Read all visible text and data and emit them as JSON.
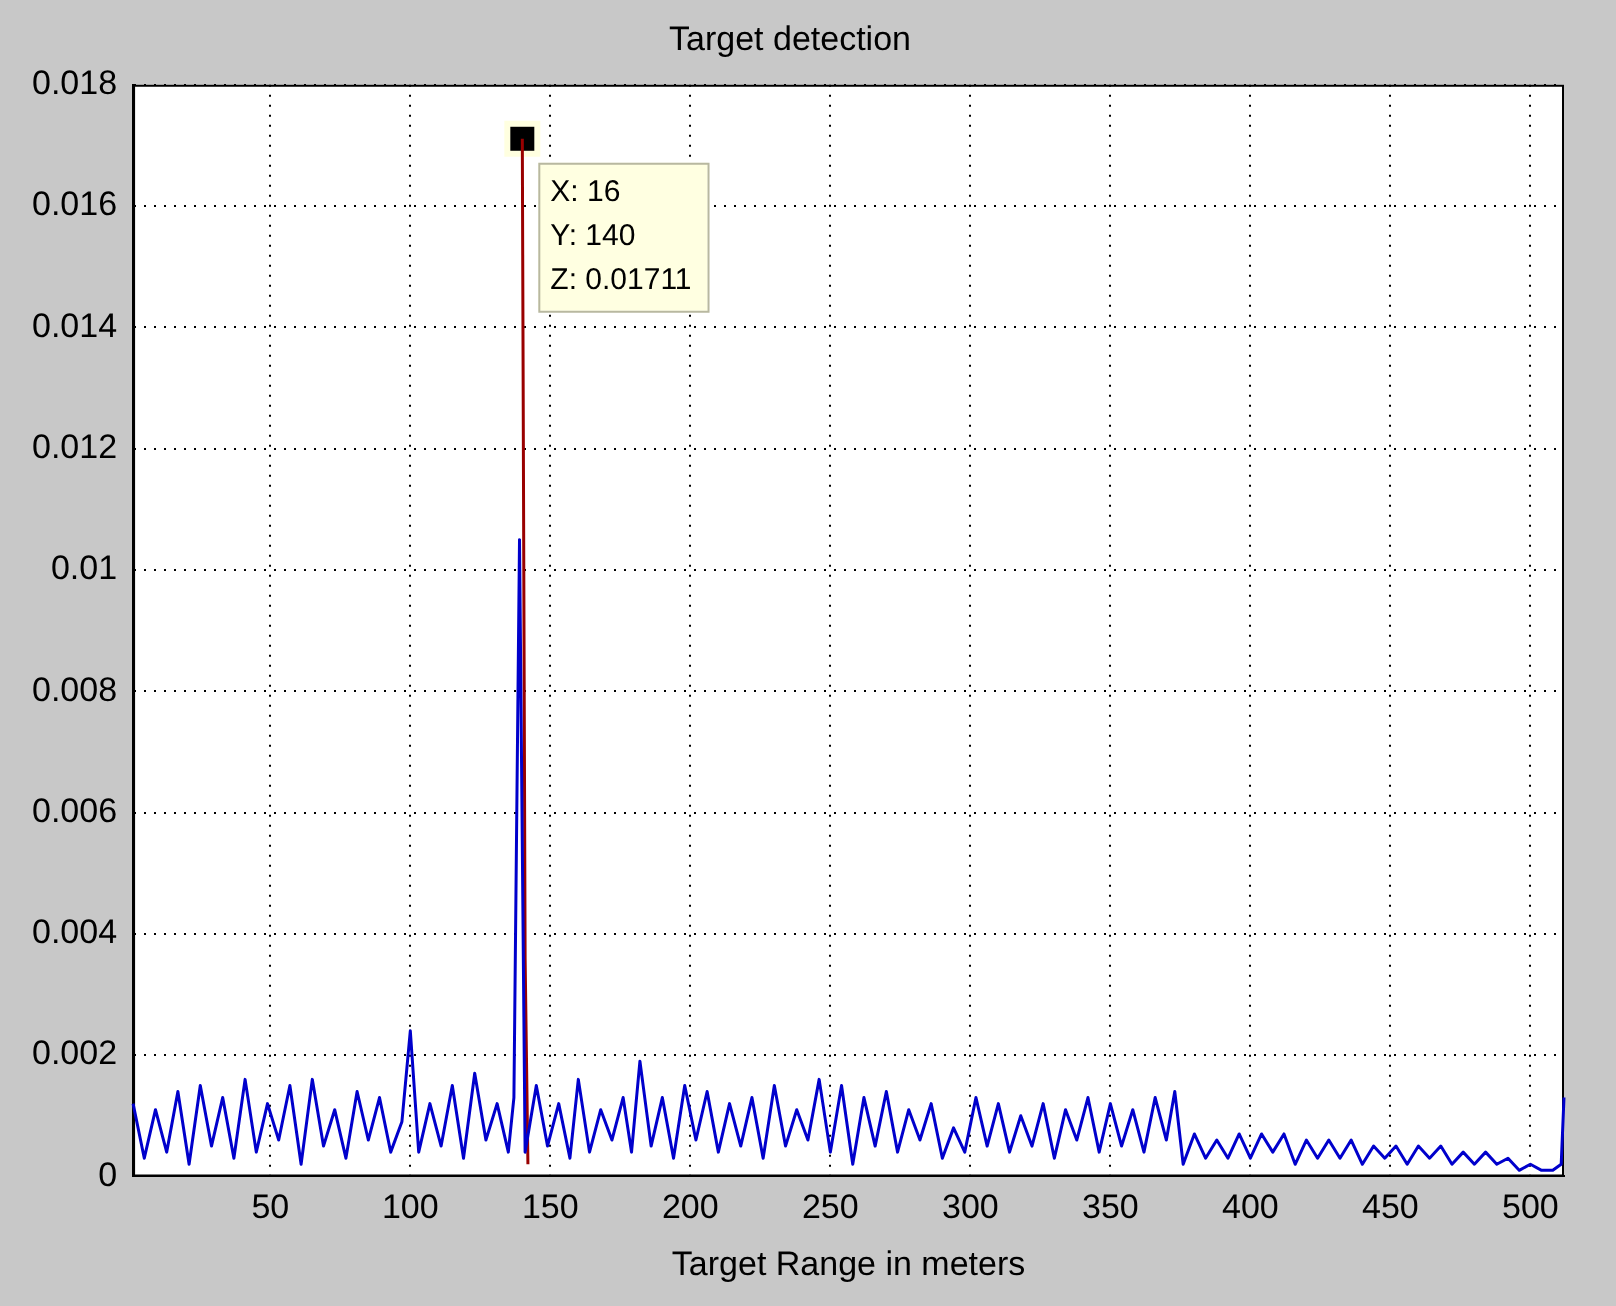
{
  "chart_data": {
    "type": "line",
    "title": "Target detection",
    "xlabel": "Target Range in meters",
    "xlim": [
      1,
      512
    ],
    "xticks": [
      50,
      100,
      150,
      200,
      250,
      300,
      350,
      400,
      450,
      500
    ],
    "ylim": [
      0,
      0.018
    ],
    "yticks": [
      0,
      0.002,
      0.004,
      0.006,
      0.008,
      0.01,
      0.012,
      0.014,
      0.016,
      0.018
    ],
    "grid": true,
    "marker": "none",
    "line_style": "solid",
    "annotations": [
      {
        "text": "X: 16\nY: 140\nZ: 0.01711",
        "x": 140,
        "y": 0.01711
      }
    ],
    "series": [
      {
        "color": "#0000cc",
        "x": [
          1,
          5,
          9,
          13,
          17,
          21,
          25,
          29,
          33,
          37,
          41,
          45,
          49,
          53,
          57,
          61,
          65,
          69,
          73,
          77,
          81,
          85,
          89,
          93,
          97,
          100,
          103,
          107,
          111,
          115,
          119,
          123,
          127,
          131,
          135,
          137,
          139,
          141,
          145,
          149,
          153,
          157,
          160,
          164,
          168,
          172,
          176,
          179,
          182,
          186,
          190,
          194,
          198,
          202,
          206,
          210,
          214,
          218,
          222,
          226,
          230,
          234,
          238,
          242,
          246,
          250,
          254,
          258,
          262,
          266,
          270,
          274,
          278,
          282,
          286,
          290,
          294,
          298,
          302,
          306,
          310,
          314,
          318,
          322,
          326,
          330,
          334,
          338,
          342,
          346,
          350,
          354,
          358,
          362,
          366,
          370,
          373,
          376,
          380,
          384,
          388,
          392,
          396,
          400,
          404,
          408,
          412,
          416,
          420,
          424,
          428,
          432,
          436,
          440,
          444,
          448,
          452,
          456,
          460,
          464,
          468,
          472,
          476,
          480,
          484,
          488,
          492,
          496,
          500,
          504,
          508,
          511,
          512
        ],
        "values": [
          0.0012,
          0.0003,
          0.0011,
          0.0004,
          0.0014,
          0.0002,
          0.0015,
          0.0005,
          0.0013,
          0.0003,
          0.0016,
          0.0004,
          0.0012,
          0.0006,
          0.0015,
          0.0002,
          0.0016,
          0.0005,
          0.0011,
          0.0003,
          0.0014,
          0.0006,
          0.0013,
          0.0004,
          0.0009,
          0.0024,
          0.0004,
          0.0012,
          0.0005,
          0.0015,
          0.0003,
          0.0017,
          0.0006,
          0.0012,
          0.0004,
          0.0013,
          0.0105,
          0.0004,
          0.0015,
          0.0005,
          0.0012,
          0.0003,
          0.0016,
          0.0004,
          0.0011,
          0.0006,
          0.0013,
          0.0004,
          0.0019,
          0.0005,
          0.0013,
          0.0003,
          0.0015,
          0.0006,
          0.0014,
          0.0004,
          0.0012,
          0.0005,
          0.0013,
          0.0003,
          0.0015,
          0.0005,
          0.0011,
          0.0006,
          0.0016,
          0.0004,
          0.0015,
          0.0002,
          0.0013,
          0.0005,
          0.0014,
          0.0004,
          0.0011,
          0.0006,
          0.0012,
          0.0003,
          0.0008,
          0.0004,
          0.0013,
          0.0005,
          0.0012,
          0.0004,
          0.001,
          0.0005,
          0.0012,
          0.0003,
          0.0011,
          0.0006,
          0.0013,
          0.0004,
          0.0012,
          0.0005,
          0.0011,
          0.0004,
          0.0013,
          0.0006,
          0.0014,
          0.0002,
          0.0007,
          0.0003,
          0.0006,
          0.0003,
          0.0007,
          0.0003,
          0.0007,
          0.0004,
          0.0007,
          0.0002,
          0.0006,
          0.0003,
          0.0006,
          0.0003,
          0.0006,
          0.0002,
          0.0005,
          0.0003,
          0.0005,
          0.0002,
          0.0005,
          0.0003,
          0.0005,
          0.0002,
          0.0004,
          0.0002,
          0.0004,
          0.0002,
          0.0003,
          0.0001,
          0.0002,
          0.0001,
          0.0001,
          0.0002,
          0.0013
        ]
      },
      {
        "color": "#990000",
        "x": [
          140,
          141,
          142
        ],
        "values": [
          0.01711,
          0.0036,
          0.0002
        ]
      }
    ]
  }
}
